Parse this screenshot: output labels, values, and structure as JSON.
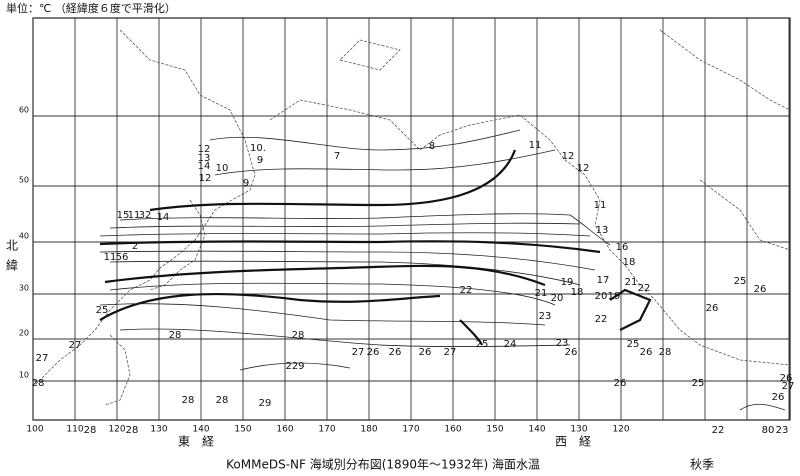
{
  "header": {
    "unit": "単位：℃ （経緯度６度で平滑化）"
  },
  "axes": {
    "east_label": "東　経",
    "west_label": "西　経",
    "north_label": [
      "北",
      "緯"
    ],
    "longitude_ticks": [
      100,
      110,
      120,
      130,
      140,
      150,
      160,
      170,
      180,
      170,
      160,
      150,
      140,
      130,
      120
    ],
    "latitude_ticks": [
      10,
      20,
      30,
      40,
      50,
      60
    ]
  },
  "isotherm_labels": [
    "12",
    "13",
    "14",
    "10",
    "12",
    "9",
    "10.",
    "9",
    "7",
    "8",
    "11",
    "12",
    "12",
    "11",
    "13",
    "16",
    "18",
    "17",
    "19",
    "20",
    "21",
    "22",
    "20",
    "19",
    "21",
    "22",
    "18",
    "23",
    "23",
    "25",
    "24",
    "26",
    "25",
    "26",
    "28",
    "22",
    "15",
    "11",
    "32",
    "14",
    "11",
    "56",
    "2",
    "25",
    "27",
    "27",
    "28",
    "28",
    "27",
    "26",
    "26",
    "26",
    "27",
    "229",
    "28",
    "28",
    "29",
    "28",
    "28",
    "26",
    "25",
    "25",
    "26",
    "26",
    "26",
    "27",
    "26",
    "22",
    "80",
    "23",
    "28"
  ],
  "footer": {
    "title": "KoMMeDS-NF 海域別分布図(1890年～1932年) 海面水温",
    "season": "秋季"
  }
}
